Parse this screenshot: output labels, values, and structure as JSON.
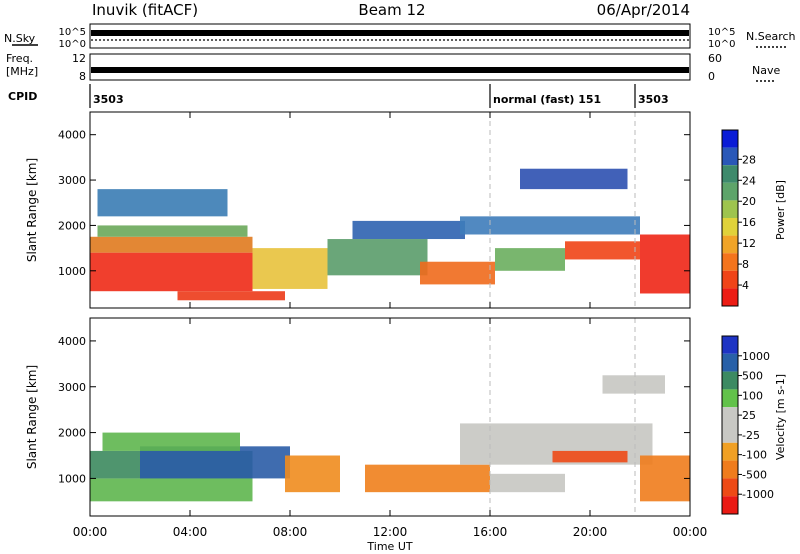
{
  "header": {
    "station": "Inuvik (fitACF)",
    "beam": "Beam 12",
    "date": "06/Apr/2014"
  },
  "top_panels": {
    "nsky_label": "N.Sky",
    "nsearch_label": "N.Search",
    "noise_ticks": [
      "10^5",
      "10^0"
    ],
    "freq_label_line1": "Freq.",
    "freq_label_line2": "[MHz]",
    "freq_ticks": [
      "12",
      "8"
    ],
    "nave_label": "Nave",
    "nave_ticks": [
      "60",
      "0"
    ],
    "cpid_label": "CPID",
    "cpid_segments": [
      {
        "start_hour": 0,
        "end_hour": 16.0,
        "text": "3503"
      },
      {
        "start_hour": 16.0,
        "end_hour": 21.8,
        "text": "normal (fast) 151"
      },
      {
        "start_hour": 21.8,
        "end_hour": 24,
        "text": "3503"
      }
    ]
  },
  "chart_data": [
    {
      "type": "heatmap",
      "title": "",
      "xlabel": "Time UT",
      "ylabel": "Slant Range [km]",
      "x_ticks": [
        "00:00",
        "04:00",
        "08:00",
        "12:00",
        "16:00",
        "20:00",
        "00:00"
      ],
      "x_hours": [
        0,
        4,
        8,
        12,
        16,
        20,
        24
      ],
      "xlim_hours": [
        0,
        24
      ],
      "ylim": [
        180,
        4500
      ],
      "y_ticks": [
        1000,
        2000,
        3000,
        4000
      ],
      "colorbar_label": "Power [dB]",
      "colorbar_ticks": [
        "4",
        "8",
        "12",
        "16",
        "20",
        "24",
        "28"
      ],
      "colorbar_colors": [
        "#0a1cd6",
        "#2a58b8",
        "#3e8a6c",
        "#5ea46a",
        "#9ec44e",
        "#e0d23a",
        "#f0a428",
        "#f4741c",
        "#f04418",
        "#ec1c14"
      ],
      "regions": [
        {
          "h0": 0.0,
          "h1": 6.5,
          "r0": 550,
          "r1": 1400,
          "color": "#ee2a16"
        },
        {
          "h0": 0.0,
          "h1": 6.5,
          "r0": 1400,
          "r1": 1750,
          "color": "#e07a1e"
        },
        {
          "h0": 0.3,
          "h1": 6.3,
          "r0": 1750,
          "r1": 2000,
          "color": "#6aa85a"
        },
        {
          "h0": 3.5,
          "h1": 7.8,
          "r0": 350,
          "r1": 550,
          "color": "#ec3a18"
        },
        {
          "h0": 6.5,
          "h1": 9.5,
          "r0": 600,
          "r1": 1500,
          "color": "#e8c23c"
        },
        {
          "h0": 9.5,
          "h1": 13.5,
          "r0": 900,
          "r1": 1700,
          "color": "#5a9c6a"
        },
        {
          "h0": 10.5,
          "h1": 15.0,
          "r0": 1700,
          "r1": 2100,
          "color": "#2e62b0"
        },
        {
          "h0": 13.2,
          "h1": 16.2,
          "r0": 700,
          "r1": 1200,
          "color": "#f06a1c"
        },
        {
          "h0": 14.8,
          "h1": 22.0,
          "r0": 1800,
          "r1": 2200,
          "color": "#3e7cba"
        },
        {
          "h0": 16.2,
          "h1": 19.0,
          "r0": 1000,
          "r1": 1500,
          "color": "#6aae5e"
        },
        {
          "h0": 19.0,
          "h1": 22.0,
          "r0": 1250,
          "r1": 1650,
          "color": "#ef4416"
        },
        {
          "h0": 22.0,
          "h1": 24.0,
          "r0": 500,
          "r1": 1800,
          "color": "#ee2616"
        },
        {
          "h0": 17.2,
          "h1": 21.5,
          "r0": 2800,
          "r1": 3250,
          "color": "#2c50b0"
        },
        {
          "h0": 0.3,
          "h1": 5.5,
          "r0": 2200,
          "r1": 2800,
          "color": "#3a7cb4"
        }
      ]
    },
    {
      "type": "heatmap",
      "title": "",
      "xlabel": "Time UT",
      "ylabel": "Slant Range [km]",
      "x_ticks": [
        "00:00",
        "04:00",
        "08:00",
        "12:00",
        "16:00",
        "20:00",
        "00:00"
      ],
      "x_hours": [
        0,
        4,
        8,
        12,
        16,
        20,
        24
      ],
      "xlim_hours": [
        0,
        24
      ],
      "ylim": [
        180,
        4500
      ],
      "y_ticks": [
        1000,
        2000,
        3000,
        4000
      ],
      "colorbar_label": "Velocity [m s-1]",
      "colorbar_ticks": [
        "1000",
        "500",
        "100",
        "25",
        "-25",
        "-100",
        "-500",
        "-1000"
      ],
      "colorbar_colors": [
        "#1e34c4",
        "#2860a8",
        "#3c8a62",
        "#62c24a",
        "#c8c8c4",
        "#c8c8c4",
        "#f0a024",
        "#f07c1c",
        "#ee4a16",
        "#ea1a14"
      ],
      "regions": [
        {
          "h0": 0.0,
          "h1": 6.5,
          "r0": 500,
          "r1": 1000,
          "color": "#5eb64e"
        },
        {
          "h0": 0.0,
          "h1": 6.5,
          "r0": 1000,
          "r1": 1600,
          "color": "#3c8a5e"
        },
        {
          "h0": 2.0,
          "h1": 8.0,
          "r0": 1000,
          "r1": 1700,
          "color": "#2a5ca6"
        },
        {
          "h0": 7.8,
          "h1": 10.0,
          "r0": 700,
          "r1": 1500,
          "color": "#f08c1e"
        },
        {
          "h0": 11.0,
          "h1": 16.0,
          "r0": 700,
          "r1": 1300,
          "color": "#f0801c"
        },
        {
          "h0": 14.8,
          "h1": 22.5,
          "r0": 1300,
          "r1": 2200,
          "color": "#c6c6c2"
        },
        {
          "h0": 18.5,
          "h1": 21.5,
          "r0": 1350,
          "r1": 1600,
          "color": "#ee4a16"
        },
        {
          "h0": 20.5,
          "h1": 23.0,
          "r0": 2850,
          "r1": 3250,
          "color": "#c6c6c2"
        },
        {
          "h0": 22.0,
          "h1": 24.0,
          "r0": 500,
          "r1": 1500,
          "color": "#f07c1c"
        },
        {
          "h0": 16.0,
          "h1": 19.0,
          "r0": 700,
          "r1": 1100,
          "color": "#c6c6c2"
        },
        {
          "h0": 0.5,
          "h1": 6.0,
          "r0": 1600,
          "r1": 2000,
          "color": "#5eb64e"
        }
      ]
    }
  ]
}
